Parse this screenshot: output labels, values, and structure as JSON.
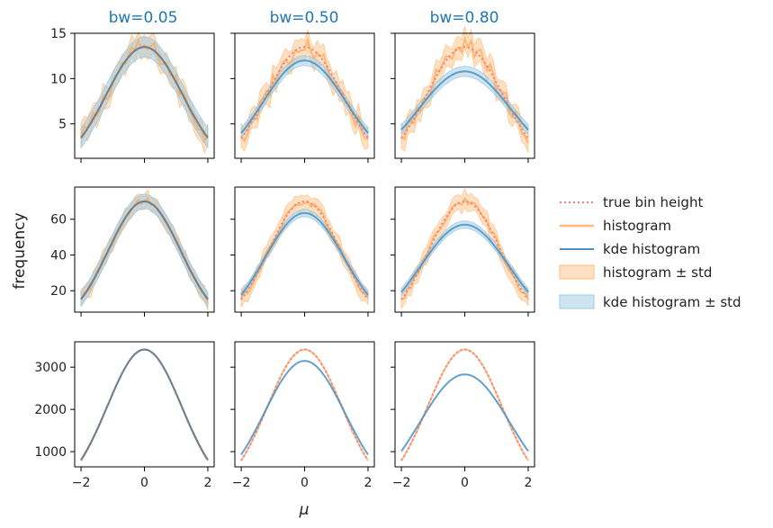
{
  "chart_data": {
    "type": "line",
    "ylabel": "frequency",
    "xlabel": "μ",
    "xlim": [
      -2.2,
      2.2
    ],
    "xticks": [
      -2,
      0,
      2
    ],
    "columns": [
      {
        "title": "bw=0.05",
        "bw": 0.05
      },
      {
        "title": "bw=0.50",
        "bw": 0.5
      },
      {
        "title": "bw=0.80",
        "bw": 0.8
      }
    ],
    "rows": [
      {
        "ylim": [
          1.2,
          15
        ],
        "yticks": [
          5,
          10,
          15
        ],
        "true_peak": 13.5,
        "true_base": 3.4,
        "noise": 0.9,
        "std": 1.1,
        "kde_peak": [
          13.5,
          12.0,
          10.8
        ]
      },
      {
        "ylim": [
          8,
          78
        ],
        "yticks": [
          20,
          40,
          60
        ],
        "true_peak": 70,
        "true_base": 15,
        "noise": 2.0,
        "std": 4.0,
        "kde_peak": [
          70,
          63.5,
          57
        ]
      },
      {
        "ylim": [
          640,
          3600
        ],
        "yticks": [
          1000,
          2000,
          3000
        ],
        "true_peak": 3420,
        "true_base": 790,
        "noise": 0,
        "std": 0,
        "kde_peak": [
          3420,
          3150,
          2830
        ]
      }
    ],
    "legend": {
      "position": "right",
      "entries": [
        {
          "label": "true bin height",
          "style": "dotted-line",
          "color": "#f08080"
        },
        {
          "label": "histogram",
          "style": "line",
          "color": "#ffbb78"
        },
        {
          "label": "kde histogram",
          "style": "line",
          "color": "#1f77b4"
        },
        {
          "label": "histogram ± std",
          "style": "patch",
          "color": "#ffbb78"
        },
        {
          "label": "kde histogram ± std",
          "style": "patch",
          "color": "#9ecae1"
        }
      ]
    },
    "colors": {
      "true": "#f08080",
      "hist": "#ffa54f",
      "kde": "#4a90c2",
      "hist_band": "#ffbb78",
      "kde_band": "#9ecae1",
      "title": "#1f77b4"
    }
  }
}
